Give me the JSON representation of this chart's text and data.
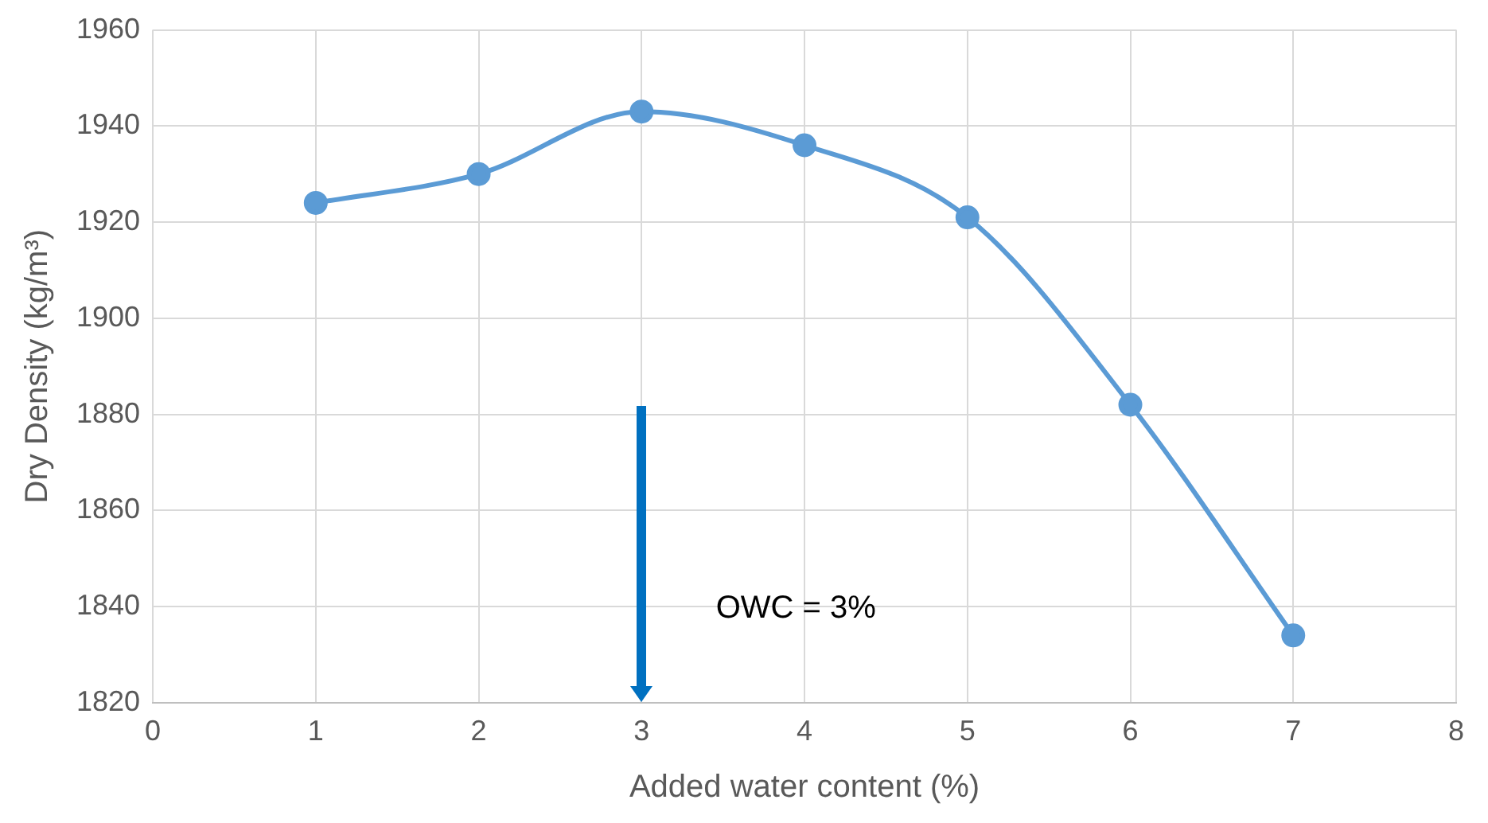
{
  "chart_data": {
    "type": "line",
    "xlabel": "Added water content (%)",
    "ylabel": "Dry Density (kg/m³)",
    "x": [
      1,
      2,
      3,
      4,
      5,
      6,
      7
    ],
    "series": [
      {
        "color": "#5b9bd5",
        "values": [
          1924,
          1930,
          1943,
          1936,
          1921,
          1882,
          1834
        ]
      }
    ],
    "xlim": [
      0,
      8
    ],
    "xticks": [
      0,
      1,
      2,
      3,
      4,
      5,
      6,
      7,
      8
    ],
    "ylim": [
      1820,
      1960
    ],
    "yticks": [
      1820,
      1840,
      1860,
      1880,
      1900,
      1920,
      1940,
      1960
    ],
    "grid": true,
    "legend": false,
    "marker": "circle",
    "line_style": "solid",
    "annotations": [
      "OWC = 3%"
    ]
  }
}
